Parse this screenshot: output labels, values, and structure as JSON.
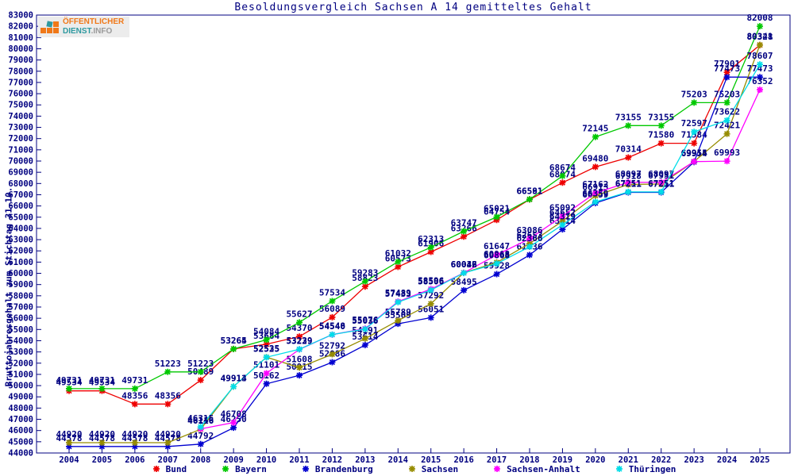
{
  "title": "Besoldungsvergleich Sachsen A 14 gemitteltes Gehalt",
  "y_axis_title": "Bruttojahresgehalt zum Stichtag 31.10.",
  "logo": {
    "line1": "ÖFFENTLICHER",
    "line2": "DIENST",
    "suffix": ".INFO",
    "orange": "#f07818",
    "teal": "#2e99a0",
    "gray": "#9a9a9a"
  },
  "chart_data": {
    "type": "line",
    "title": "Besoldungsvergleich Sachsen A 14 gemitteltes Gehalt",
    "xlabel": "",
    "ylabel": "Bruttojahresgehalt zum Stichtag 31.10.",
    "x": [
      2004,
      2005,
      2006,
      2007,
      2008,
      2009,
      2010,
      2011,
      2012,
      2013,
      2014,
      2015,
      2016,
      2017,
      2018,
      2019,
      2020,
      2021,
      2022,
      2023,
      2024,
      2025
    ],
    "ylim": [
      44000,
      83000
    ],
    "y_tick_step": 1000,
    "grid": false,
    "legend_position": "bottom",
    "marker": "star",
    "text_color": "#000080",
    "axis_color": "#000080",
    "series": [
      {
        "name": "Bund",
        "color": "#ee0000",
        "values": [
          49534,
          49534,
          48356,
          48356,
          50489,
          53265,
          53684,
          54370,
          56089,
          58823,
          60573,
          61906,
          63266,
          64754,
          66581,
          68074,
          69480,
          70314,
          71580,
          71584,
          77901,
          80328
        ]
      },
      {
        "name": "Bayern",
        "color": "#00c800",
        "values": [
          49731,
          49731,
          49731,
          51223,
          51223,
          53264,
          54084,
          55627,
          57534,
          59283,
          61032,
          62313,
          63747,
          65021,
          66591,
          68674,
          72145,
          73155,
          73155,
          75203,
          75203,
          82008
        ]
      },
      {
        "name": "Brandenburg",
        "color": "#0000d0",
        "values": [
          44578,
          44578,
          44578,
          44578,
          44792,
          46250,
          50162,
          50915,
          52086,
          53614,
          55509,
          56051,
          58495,
          59928,
          61636,
          63914,
          66259,
          67211,
          67211,
          69914,
          77473,
          77473
        ]
      },
      {
        "name": "Sachsen",
        "color": "#968c00",
        "values": [
          44920,
          44920,
          44920,
          44920,
          46116,
          49913,
          52535,
          51608,
          52792,
          54191,
          55789,
          57292,
          60046,
          60968,
          62653,
          64652,
          66913,
          67918,
          67951,
          69955,
          72421,
          80341
        ]
      },
      {
        "name": "Sachsen-Anhalt",
        "color": "#ff00ff",
        "values": [
          null,
          null,
          null,
          null,
          46146,
          46708,
          51101,
          53229,
          54540,
          55076,
          57489,
          58596,
          60046,
          61647,
          63086,
          65092,
          67162,
          68097,
          68097,
          69954,
          69993,
          76352
        ]
      },
      {
        "name": "Thüringen",
        "color": "#00dde8",
        "values": [
          null,
          null,
          null,
          null,
          46315,
          49914,
          52525,
          53239,
          54548,
          55036,
          57433,
          58506,
          60032,
          60868,
          62366,
          64319,
          66359,
          67251,
          67251,
          72597,
          73622,
          78607
        ]
      }
    ]
  }
}
